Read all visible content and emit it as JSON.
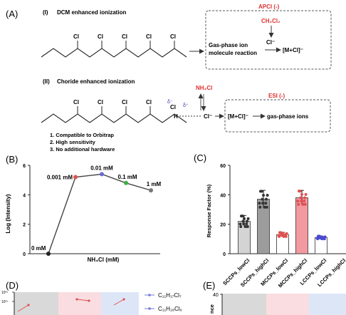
{
  "panels": {
    "A": {
      "label": "(A)",
      "part1": {
        "numeral": "(I)",
        "title": "DCM enhanced ionization",
        "chain_labels": [
          "Cl",
          "Cl",
          "Cl",
          "Cl",
          "Cl",
          "Cl"
        ],
        "box_title": "APCI (-)",
        "box_title_color": "#e03030",
        "reagent": "CH₂Cl₂",
        "reagent_color": "#e03030",
        "step_text_line1": "Gas-phase ion",
        "step_text_line2": "molecule reaction",
        "arrow_label": "Cl⁻",
        "product": "[M+Cl]⁻"
      },
      "part2": {
        "numeral": "(II)",
        "title": "Choride enhanced ionization",
        "chain_labels": [
          "Cl",
          "Cl",
          "Cl",
          "Cl",
          "Cl"
        ],
        "delta_minus": "δ⁻",
        "delta_plus": "δ⁺",
        "h_atom": "H",
        "dash_cl": "Cl⁻",
        "reagent": "NH₄Cl",
        "reagent_color": "#e03030",
        "box_title": "ESI (-)",
        "box_title_color": "#e03030",
        "product": "[M+Cl]⁻",
        "outcome": "gas-phase ions",
        "benefits": [
          "1. Compatible to Orbitrap",
          "2. High sensitivity",
          "3. No additional hardware"
        ]
      }
    },
    "B": {
      "label": "(B)",
      "ylabel": "Log (Intensity)",
      "xlabel": "NH₄Cl (mM)",
      "point_labels": [
        "0 mM",
        "0.001 mM",
        "0.01 mM",
        "0.1 mM",
        "1 mM"
      ]
    },
    "C": {
      "label": "(C)",
      "ylabel": "Response Factor (%)"
    },
    "D": {
      "label": "(D)",
      "ytick_labels": [
        "10⁰⁷",
        "10⁰⁷"
      ],
      "legend": [
        "C₁₁H₁₇Cl₇",
        "C₁₁H₁₈Cl₆"
      ]
    },
    "E": {
      "label": "(E)",
      "ytick_labels": [
        "40"
      ],
      "ylabel_fragment": "nce"
    }
  },
  "chart_data": [
    {
      "panel": "B",
      "type": "line",
      "categories": [
        "0 mM",
        "0.001 mM",
        "0.01 mM",
        "0.1 mM",
        "1 mM"
      ],
      "values": [
        0,
        5.2,
        5.4,
        4.8,
        4.3
      ],
      "point_colors": [
        "#222222",
        "#e05050",
        "#6a6ad8",
        "#3cb043",
        "#777777"
      ],
      "ylabel": "Log (Intensity)",
      "xlabel": "NH₄Cl (mM)",
      "ylim": [
        0,
        6
      ],
      "yticks": [
        0,
        2,
        4,
        6
      ],
      "grid": false
    },
    {
      "panel": "C",
      "type": "bar",
      "categories": [
        "SCCPs_lowCl",
        "SCCPs_highCl",
        "MCCPs_lowCl",
        "MCCPs_highCl",
        "LCCPs_lowCl",
        "LCCPs_highCl"
      ],
      "values": [
        22,
        37,
        13,
        38,
        11,
        0
      ],
      "errors": [
        4,
        6,
        1.5,
        5,
        1,
        0
      ],
      "bar_colors": [
        "#d4d4d4",
        "#9c9c9c",
        "#ffffff",
        "#f39aa0",
        "#ffffff",
        "#ffffff"
      ],
      "point_colors": [
        "#333333",
        "#333333",
        "#e05050",
        "#e05050",
        "#4a4ad0",
        "#4a4ad0"
      ],
      "ylabel": "Response Factor (%)",
      "ylim": [
        0,
        60
      ],
      "yticks": [
        0,
        20,
        40,
        60
      ],
      "grid": false
    },
    {
      "panel": "D",
      "type": "line",
      "series": [
        {
          "name": "C₁₁H₁₇Cl₇",
          "color": "#7a7ad8"
        },
        {
          "name": "C₁₁H₁₈Cl₆",
          "color": "#7a7ad8"
        }
      ],
      "background_bands": [
        "#d9d9d9",
        "#f9dde0",
        "#dde6f7"
      ],
      "grid": false
    },
    {
      "panel": "E",
      "type": "bar",
      "yticks": [
        40
      ],
      "background_bands": [
        "#d9d9d9",
        "#f9dde0",
        "#dde6f7"
      ]
    }
  ]
}
